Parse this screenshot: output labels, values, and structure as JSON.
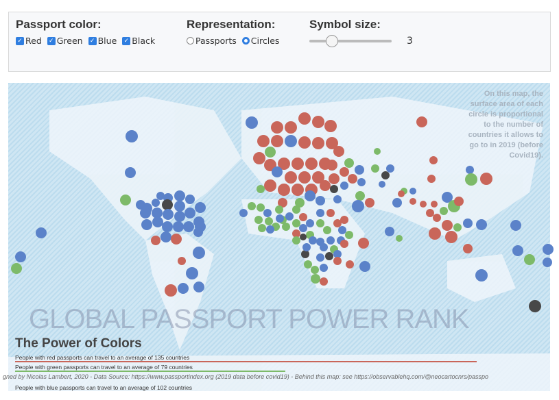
{
  "controls": {
    "passport_color": {
      "label": "Passport color:",
      "options": [
        {
          "label": "Red",
          "checked": true
        },
        {
          "label": "Green",
          "checked": true
        },
        {
          "label": "Blue",
          "checked": true
        },
        {
          "label": "Black",
          "checked": true
        }
      ]
    },
    "representation": {
      "label": "Representation:",
      "options": [
        {
          "label": "Passports",
          "selected": false
        },
        {
          "label": "Circles",
          "selected": true
        }
      ]
    },
    "symbol_size": {
      "label": "Symbol size:",
      "value": "3"
    }
  },
  "map": {
    "note": "On this map, the surface area of each circle is proportional to the number of countries it allows to go to in 2019 (before Covid19).",
    "title": "The Power of Colors",
    "watermark": "GLOBAL PASSPORT POWER RANK",
    "stats": [
      "People with red passports can travel to an average of 135 countries",
      "People with green passports can travel to an average of 79 countries",
      "People with blue passports can travel to an average of 102 countries"
    ],
    "credit": "gned by Nicolas Lambert, 2020 - Data Source: https://www.passportindex.org (2019 data before covid19) - Behind this map: see https://observablehq.com/@neocartocnrs/passpo",
    "colors": {
      "red": "#c9665a",
      "green": "#7dba69",
      "blue": "#5b82c9",
      "black": "#484848",
      "ocean": "#c5e1f1",
      "land": "#eef5fa"
    }
  }
}
